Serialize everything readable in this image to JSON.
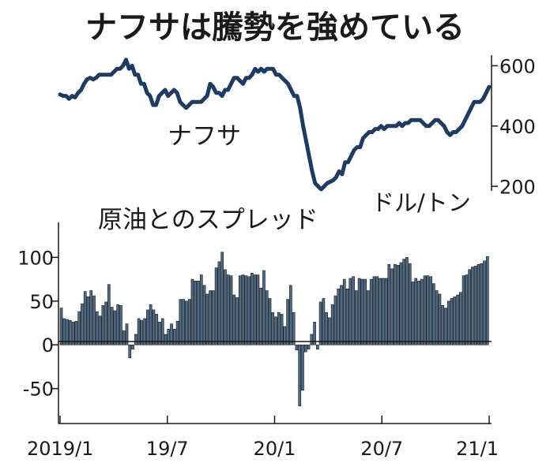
{
  "title": "ナフサは騰勢を強めている",
  "chart_data": [
    {
      "type": "line",
      "series": [
        {
          "name": "ナフサ",
          "color": "#1d3b63",
          "values": [
            505,
            500,
            500,
            490,
            500,
            495,
            510,
            520,
            540,
            555,
            560,
            555,
            560,
            570,
            570,
            570,
            570,
            570,
            580,
            590,
            590,
            600,
            620,
            590,
            600,
            570,
            570,
            540,
            540,
            510,
            500,
            470,
            470,
            500,
            510,
            520,
            500,
            510,
            520,
            510,
            480,
            470,
            460,
            470,
            480,
            480,
            480,
            480,
            490,
            500,
            540,
            530,
            510,
            510,
            500,
            520,
            520,
            540,
            560,
            560,
            550,
            540,
            560,
            560,
            570,
            590,
            580,
            590,
            580,
            590,
            590,
            590,
            570,
            570,
            560,
            550,
            540,
            520,
            500,
            500,
            460,
            400,
            350,
            300,
            250,
            210,
            200,
            190,
            200,
            210,
            215,
            220,
            230,
            250,
            240,
            280,
            280,
            300,
            320,
            330,
            330,
            360,
            370,
            380,
            380,
            390,
            390,
            400,
            390,
            400,
            400,
            400,
            400,
            410,
            400,
            410,
            410,
            420,
            420,
            420,
            420,
            410,
            400,
            400,
            410,
            420,
            420,
            410,
            400,
            380,
            370,
            380,
            380,
            390,
            400,
            420,
            440,
            460,
            480,
            480,
            480,
            490,
            510,
            530
          ]
        }
      ],
      "ylim": [
        185,
        635
      ],
      "yticks": [
        200,
        400,
        600
      ],
      "unit_label": "ドル/トン",
      "series_label": "ナフサ",
      "axis_side": "right",
      "grid": false
    },
    {
      "type": "bar",
      "series": [
        {
          "name": "原油とのスプレッド",
          "color": "#4d6a86",
          "values": [
            42,
            30,
            29,
            28,
            26,
            27,
            38,
            47,
            61,
            55,
            62,
            56,
            38,
            33,
            45,
            49,
            69,
            43,
            39,
            46,
            45,
            16,
            24,
            -15,
            -5,
            12,
            30,
            28,
            30,
            40,
            46,
            40,
            35,
            26,
            30,
            12,
            18,
            24,
            18,
            27,
            52,
            52,
            50,
            52,
            75,
            73,
            73,
            80,
            68,
            58,
            62,
            62,
            88,
            95,
            106,
            86,
            80,
            79,
            57,
            54,
            79,
            80,
            79,
            78,
            82,
            80,
            80,
            65,
            85,
            62,
            53,
            37,
            32,
            37,
            35,
            21,
            52,
            68,
            37,
            -6,
            -70,
            -52,
            -8,
            -5,
            12,
            26,
            -5,
            49,
            53,
            37,
            31,
            46,
            56,
            64,
            68,
            75,
            64,
            76,
            78,
            62,
            76,
            75,
            75,
            62,
            75,
            78,
            78,
            76,
            76,
            76,
            92,
            87,
            92,
            91,
            94,
            98,
            100,
            93,
            72,
            76,
            73,
            75,
            79,
            79,
            78,
            70,
            62,
            58,
            45,
            42,
            50,
            53,
            55,
            57,
            60,
            79,
            80,
            86,
            89,
            90,
            92,
            93,
            96,
            101
          ]
        }
      ],
      "ylim": [
        -90,
        140
      ],
      "yticks": [
        -50,
        0,
        50,
        100
      ],
      "ytick_labels": [
        "-50",
        "0",
        "50",
        "100"
      ],
      "series_label": "原油とのスプレッド",
      "x_tick_labels": [
        "2019/1",
        "19/7",
        "20/1",
        "20/7",
        "21/1"
      ],
      "grid": false
    }
  ]
}
